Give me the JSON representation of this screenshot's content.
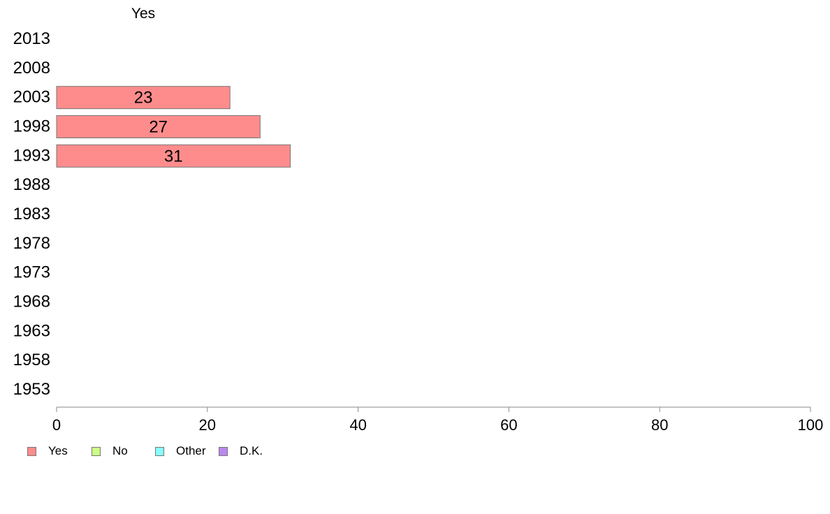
{
  "chart_data": {
    "type": "bar",
    "orientation": "horizontal",
    "stacked": true,
    "header": "Yes",
    "categories": [
      "2013",
      "2008",
      "2003",
      "1998",
      "1993",
      "1988",
      "1983",
      "1978",
      "1973",
      "1968",
      "1963",
      "1958",
      "1953"
    ],
    "series": [
      {
        "name": "Yes",
        "color": "#ff8c8c",
        "values": [
          null,
          null,
          23,
          27,
          31,
          null,
          null,
          null,
          null,
          null,
          null,
          null,
          null
        ]
      },
      {
        "name": "No",
        "color": "#ccff88",
        "values": [
          null,
          null,
          null,
          null,
          null,
          null,
          null,
          null,
          null,
          null,
          null,
          null,
          null
        ]
      },
      {
        "name": "Other",
        "color": "#88ffff",
        "values": [
          null,
          null,
          null,
          null,
          null,
          null,
          null,
          null,
          null,
          null,
          null,
          null,
          null
        ]
      },
      {
        "name": "D.K.",
        "color": "#bb88ee",
        "values": [
          null,
          null,
          null,
          null,
          null,
          null,
          null,
          null,
          null,
          null,
          null,
          null,
          null
        ]
      }
    ],
    "data_labels": [
      "",
      "",
      "23",
      "27",
      "31",
      "",
      "",
      "",
      "",
      "",
      "",
      "",
      ""
    ],
    "xlim": [
      0,
      100
    ],
    "xticks": [
      "0",
      "20",
      "40",
      "60",
      "80",
      "100"
    ],
    "grid": false,
    "legend_position": "bottom-left"
  }
}
